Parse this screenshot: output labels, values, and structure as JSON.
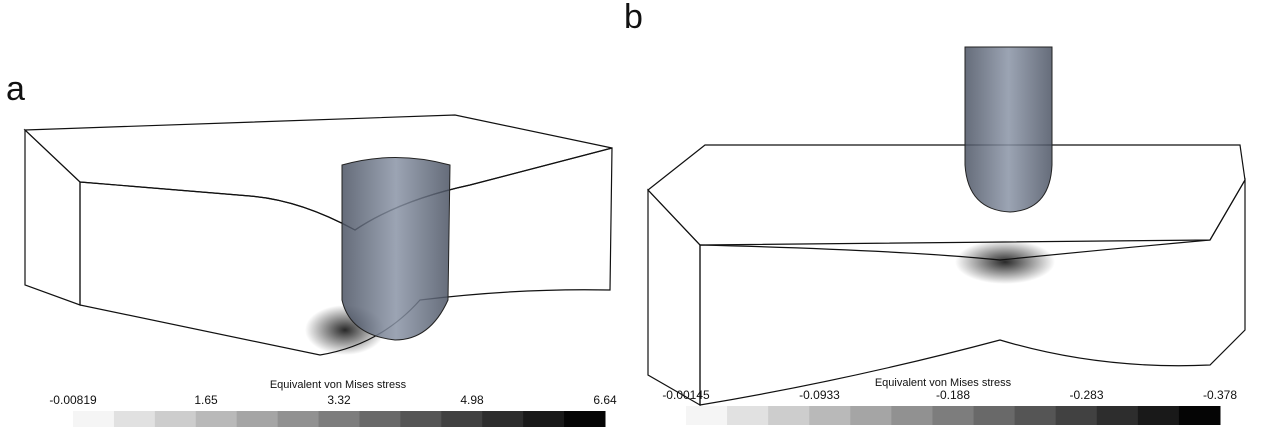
{
  "panels": [
    {
      "label": "a",
      "colorbar": {
        "title": "Equivalent von Mises stress",
        "ticks": [
          "-0.00819",
          "1.65",
          "3.32",
          "4.98",
          "6.64"
        ]
      }
    },
    {
      "label": "b",
      "colorbar": {
        "title": "Equivalent von Mises stress",
        "ticks": [
          "-0.00145",
          "-0.0933",
          "-0.188",
          "-0.283",
          "-0.378"
        ]
      }
    }
  ]
}
